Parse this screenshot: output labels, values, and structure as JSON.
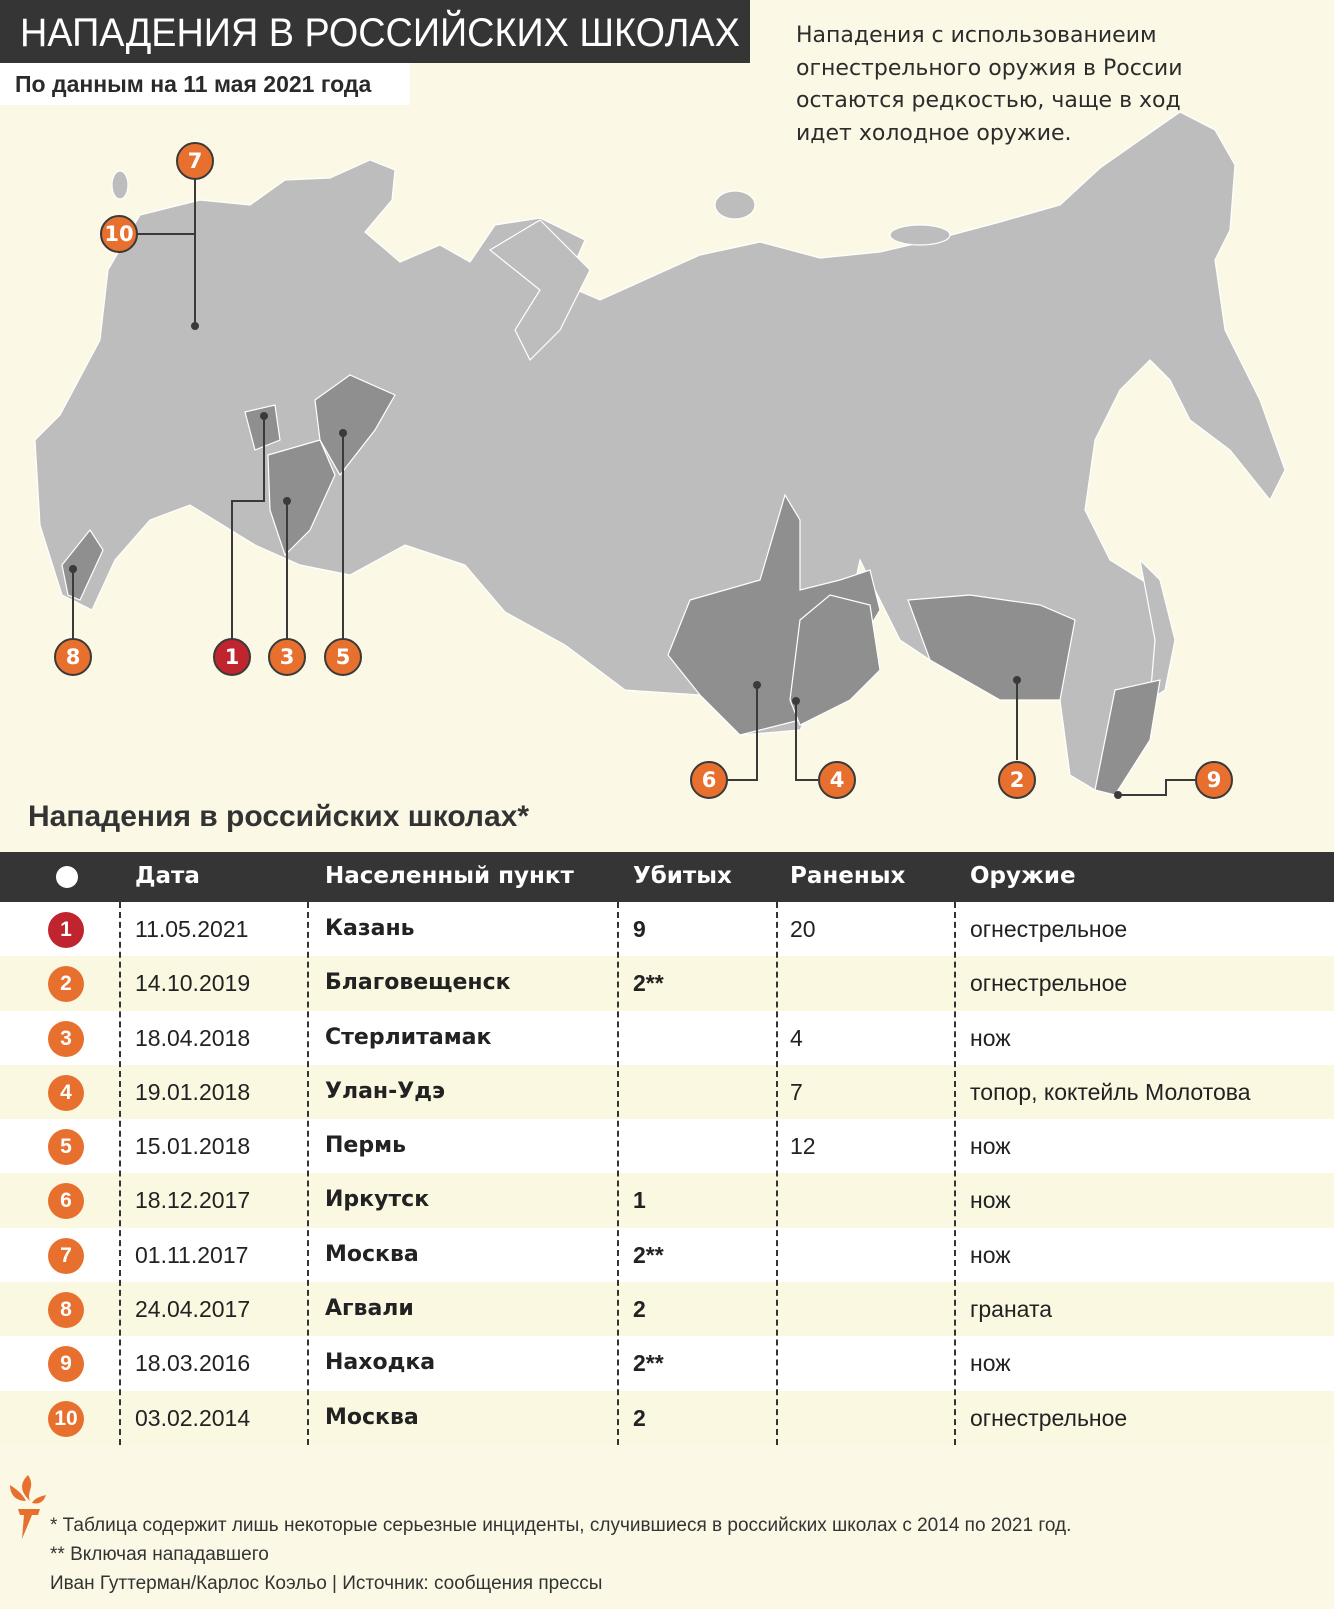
{
  "header": {
    "title": "НАПАДЕНИЯ В РОССИЙСКИХ ШКОЛАХ",
    "subtitle": "По данным на 11 мая 2021 года"
  },
  "intro": "Нападения с использованиеим огнестрельного оружия в России остаются редкостью, чаще в ход идет холодное оружие.",
  "colors": {
    "accent": "#e8702f",
    "latest": "#c0242f",
    "header_bg": "#353535",
    "map_gray": "#bdbdbd",
    "map_highlight": "#8f8f8f",
    "background": "#fbf9e6"
  },
  "map_markers": [
    "1",
    "2",
    "3",
    "4",
    "5",
    "6",
    "7",
    "8",
    "9",
    "10"
  ],
  "table": {
    "title": "Нападения в российских школах*",
    "columns": [
      "●",
      "Дата",
      "Населенный пункт",
      "Убитых",
      "Раненых",
      "Оружие"
    ],
    "rows": [
      {
        "n": "1",
        "date": "11.05.2021",
        "city": "Казань",
        "killed": "9",
        "wounded": "20",
        "weapon": "огнестрельное"
      },
      {
        "n": "2",
        "date": "14.10.2019",
        "city": "Благовещенск",
        "killed": "2**",
        "wounded": "",
        "weapon": "огнестрельное"
      },
      {
        "n": "3",
        "date": "18.04.2018",
        "city": "Стерлитамак",
        "killed": "",
        "wounded": "4",
        "weapon": "нож"
      },
      {
        "n": "4",
        "date": "19.01.2018",
        "city": "Улан-Удэ",
        "killed": "",
        "wounded": "7",
        "weapon": "топор, коктейль Молотова"
      },
      {
        "n": "5",
        "date": "15.01.2018",
        "city": "Пермь",
        "killed": "",
        "wounded": "12",
        "weapon": "нож"
      },
      {
        "n": "6",
        "date": "18.12.2017",
        "city": "Иркутск",
        "killed": "1",
        "wounded": "",
        "weapon": "нож"
      },
      {
        "n": "7",
        "date": "01.11.2017",
        "city": "Москва",
        "killed": "2**",
        "wounded": "",
        "weapon": "нож"
      },
      {
        "n": "8",
        "date": "24.04.2017",
        "city": "Агвали",
        "killed": "2",
        "wounded": "",
        "weapon": "граната"
      },
      {
        "n": "9",
        "date": "18.03.2016",
        "city": "Находка",
        "killed": "2**",
        "wounded": "",
        "weapon": "нож"
      },
      {
        "n": "10",
        "date": "03.02.2014",
        "city": "Москва",
        "killed": "2",
        "wounded": "",
        "weapon": "огнестрельное"
      }
    ]
  },
  "footer": {
    "note1": "* Таблица содержит лишь некоторые серьезные инциденты, случившиеся в российских школах с 2014 по 2021 год.",
    "note2": "** Включая нападавшего",
    "credits": "Иван Гуттерман/Карлос Коэльо | Источник: сообщения прессы",
    "logo": "torch-logo"
  }
}
